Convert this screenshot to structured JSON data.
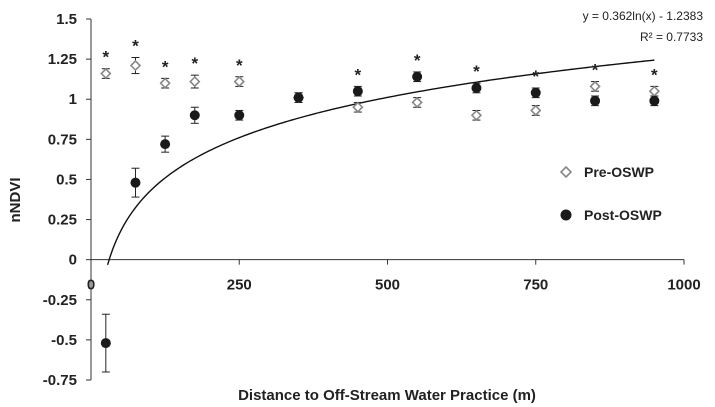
{
  "chart_data": {
    "type": "scatter",
    "xlabel": "Distance to Off-Stream Water Practice (m)",
    "ylabel": "nNDVI",
    "xlim": [
      0,
      1000
    ],
    "ylim": [
      -0.75,
      1.5
    ],
    "x_ticks": [
      "0",
      "250",
      "500",
      "750",
      "1000"
    ],
    "y_ticks": [
      "-0.75",
      "-0.5",
      "-0.25",
      "0",
      "0.25",
      "0.5",
      "0.75",
      "1",
      "1.25",
      "1.5"
    ],
    "legend_position": "right",
    "series": [
      {
        "name": "Pre-OSWP",
        "marker": "diamond-open",
        "color": "#888888",
        "points": [
          {
            "x": 25,
            "y": 1.16,
            "err": 0.03
          },
          {
            "x": 75,
            "y": 1.21,
            "err": 0.05
          },
          {
            "x": 125,
            "y": 1.1,
            "err": 0.03
          },
          {
            "x": 175,
            "y": 1.11,
            "err": 0.04
          },
          {
            "x": 250,
            "y": 1.11,
            "err": 0.03
          },
          {
            "x": 350,
            "y": 1.01,
            "err": 0.03
          },
          {
            "x": 450,
            "y": 0.95,
            "err": 0.03
          },
          {
            "x": 550,
            "y": 0.98,
            "err": 0.03
          },
          {
            "x": 650,
            "y": 0.9,
            "err": 0.03
          },
          {
            "x": 750,
            "y": 0.93,
            "err": 0.03
          },
          {
            "x": 850,
            "y": 1.08,
            "err": 0.03
          },
          {
            "x": 950,
            "y": 1.05,
            "err": 0.03
          }
        ]
      },
      {
        "name": "Post-OSWP",
        "marker": "circle-filled",
        "color": "#1a1a1a",
        "points": [
          {
            "x": 25,
            "y": -0.52,
            "err": 0.18
          },
          {
            "x": 75,
            "y": 0.48,
            "err": 0.09
          },
          {
            "x": 125,
            "y": 0.72,
            "err": 0.05
          },
          {
            "x": 175,
            "y": 0.9,
            "err": 0.05
          },
          {
            "x": 250,
            "y": 0.9,
            "err": 0.03
          },
          {
            "x": 350,
            "y": 1.01,
            "err": 0.03
          },
          {
            "x": 450,
            "y": 1.05,
            "err": 0.03
          },
          {
            "x": 550,
            "y": 1.14,
            "err": 0.03
          },
          {
            "x": 650,
            "y": 1.07,
            "err": 0.03
          },
          {
            "x": 750,
            "y": 1.04,
            "err": 0.03
          },
          {
            "x": 850,
            "y": 0.99,
            "err": 0.03
          },
          {
            "x": 950,
            "y": 0.99,
            "err": 0.03
          }
        ]
      }
    ],
    "significance_x": [
      25,
      75,
      125,
      175,
      250,
      450,
      550,
      650,
      750,
      850,
      950
    ],
    "significance_symbol": "*",
    "trendline": {
      "type": "log",
      "a": 0.362,
      "b": -1.2383,
      "x_start": 28,
      "x_end": 950,
      "equation_label": "y = 0.362ln(x) - 1.2383",
      "r2_label": "R² = 0.7733"
    }
  }
}
